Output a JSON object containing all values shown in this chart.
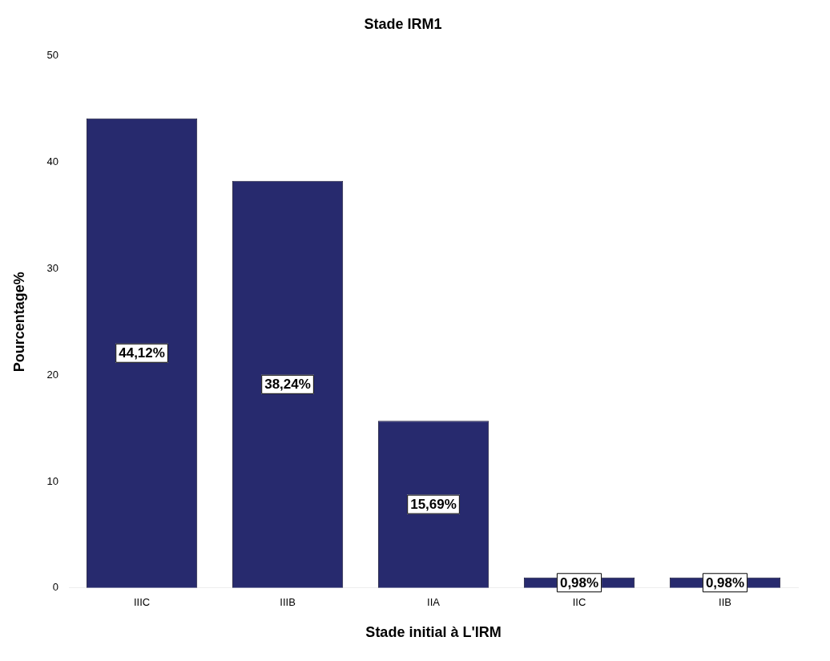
{
  "chart_data": {
    "type": "bar",
    "title": "Stade IRM1",
    "xlabel": "Stade initial à L'IRM",
    "ylabel": "Pourcentage%",
    "categories": [
      "IIIC",
      "IIIB",
      "IIA",
      "IIC",
      "IIB"
    ],
    "values": [
      44.12,
      38.24,
      15.69,
      0.98,
      0.98
    ],
    "value_labels": [
      "44,12%",
      "38,24%",
      "15,69%",
      "0,98%",
      "0,98%"
    ],
    "color": "#272a6e",
    "ylim": [
      0,
      50
    ],
    "yticks": [
      0,
      10,
      20,
      30,
      40,
      50
    ],
    "grid": false,
    "legend": false
  }
}
